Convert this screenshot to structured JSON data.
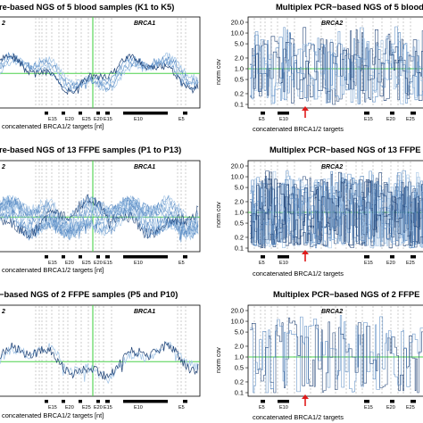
{
  "figure": {
    "colors": {
      "line_dark": "#1c3f73",
      "line_light": "#5b8cc4",
      "line_pale": "#9cc0e4",
      "threshold": "#4bd14b",
      "arrow": "#e01a1a",
      "grid": "#9a9a9a"
    }
  },
  "chart_data": [
    {
      "type": "line",
      "title": "re-based NGS of 5 blood samples (K1 to K5)",
      "xlabel": "concatenated BRCA1/2 targets [nt]",
      "gene_labels": [
        "2",
        "BRCA1"
      ],
      "exon_labels": [
        "E15",
        "E20",
        "E25",
        "E20",
        "E15",
        "E10",
        "E5"
      ],
      "series_count": 5,
      "noise": 0.45
    },
    {
      "type": "line",
      "title": "Multiplex PCR−based NGS of 5 blood",
      "xlabel": "concatenated BRCA1/2 targets",
      "ylabel": "norm cov",
      "gene_labels": [
        "BRCA2"
      ],
      "exon_labels": [
        "E5",
        "E10",
        "E15",
        "E20",
        "E25"
      ],
      "ylim": [
        0.1,
        20.0
      ],
      "y_scale": "log",
      "y_ticks": [
        "20.0",
        "10.0",
        "5.0",
        "2.0",
        "1.0",
        "0.5",
        "0.2",
        "0.1"
      ],
      "threshold": 1.0,
      "series_count": 5,
      "noise": 1.0
    },
    {
      "type": "line",
      "title": "re-based NGS of 13 FFPE samples (P1 to P13)",
      "xlabel": "concatenated BRCA1/2 targets [nt]",
      "gene_labels": [
        "2",
        "BRCA1"
      ],
      "exon_labels": [
        "E15",
        "E20",
        "E25",
        "E20",
        "E15",
        "E10",
        "E5"
      ],
      "series_count": 13,
      "noise": 0.7
    },
    {
      "type": "line",
      "title": "Multiplex PCR−based NGS of 13 FFPE",
      "xlabel": "concatenated BRCA1/2 targets",
      "ylabel": "norm cov",
      "gene_labels": [
        "BRCA2"
      ],
      "exon_labels": [
        "E5",
        "E10",
        "E15",
        "E20",
        "E25"
      ],
      "ylim": [
        0.1,
        20.0
      ],
      "y_scale": "log",
      "y_ticks": [
        "20.0",
        "10.0",
        "5.0",
        "2.0",
        "1.0",
        "0.5",
        "0.2",
        "0.1"
      ],
      "threshold": 1.0,
      "series_count": 13,
      "noise": 1.1
    },
    {
      "type": "line",
      "title": "−based NGS of 2 FFPE samples (P5 and P10)",
      "xlabel": "concatenated BRCA1/2 targets [nt]",
      "gene_labels": [
        "2",
        "BRCA1"
      ],
      "exon_labels": [
        "E15",
        "E20",
        "E25",
        "E20",
        "E15",
        "E10",
        "E5"
      ],
      "series_count": 2,
      "noise": 0.6
    },
    {
      "type": "line",
      "title": "Multiplex PCR−based NGS of 2 FFPE",
      "xlabel": "concatenated BRCA1/2 targets",
      "ylabel": "norm cov",
      "gene_labels": [
        "BRCA2"
      ],
      "exon_labels": [
        "E5",
        "E10",
        "E15",
        "E20",
        "E25"
      ],
      "ylim": [
        0.1,
        20.0
      ],
      "y_scale": "log",
      "y_ticks": [
        "20.0",
        "10.0",
        "5.0",
        "2.0",
        "1.0",
        "0.5",
        "0.2",
        "0.1"
      ],
      "threshold": 1.0,
      "series_count": 2,
      "noise": 1.3
    }
  ]
}
